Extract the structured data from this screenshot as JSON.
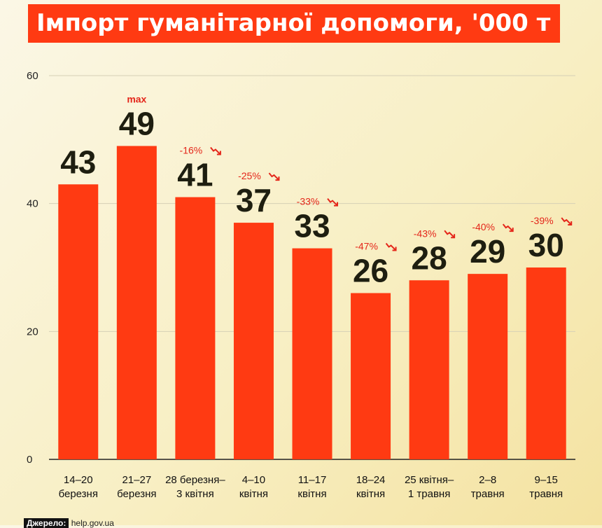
{
  "title": "Імпорт гуманітарної допомоги, '000 т",
  "source": {
    "label": "Джерело:",
    "value": "help.gov.ua"
  },
  "colors": {
    "bar": "#ff3a12",
    "accent": "#e4261a",
    "value_text": "#1e1e10",
    "grid": "#d6d0b6",
    "axis": "#222222"
  },
  "chart_data": {
    "type": "bar",
    "title": "Імпорт гуманітарної допомоги, '000 т",
    "categories": [
      [
        "14–20",
        "березня"
      ],
      [
        "21–27",
        "березня"
      ],
      [
        "28 березня–",
        "3 квітня"
      ],
      [
        "4–10",
        "квітня"
      ],
      [
        "11–17",
        "квітня"
      ],
      [
        "18–24",
        "квітня"
      ],
      [
        "25 квітня–",
        "1 травня"
      ],
      [
        "2–8",
        "травня"
      ],
      [
        "9–15",
        "травня"
      ]
    ],
    "values": [
      43,
      49,
      41,
      37,
      33,
      26,
      28,
      29,
      30
    ],
    "annotations": [
      "",
      "max",
      "-16%",
      "-25%",
      "-33%",
      "-47%",
      "-43%",
      "-40%",
      "-39%"
    ],
    "yticks": [
      0,
      20,
      40,
      60
    ],
    "ylim": [
      0,
      60
    ],
    "xlabel": "",
    "ylabel": "",
    "grid": true
  }
}
